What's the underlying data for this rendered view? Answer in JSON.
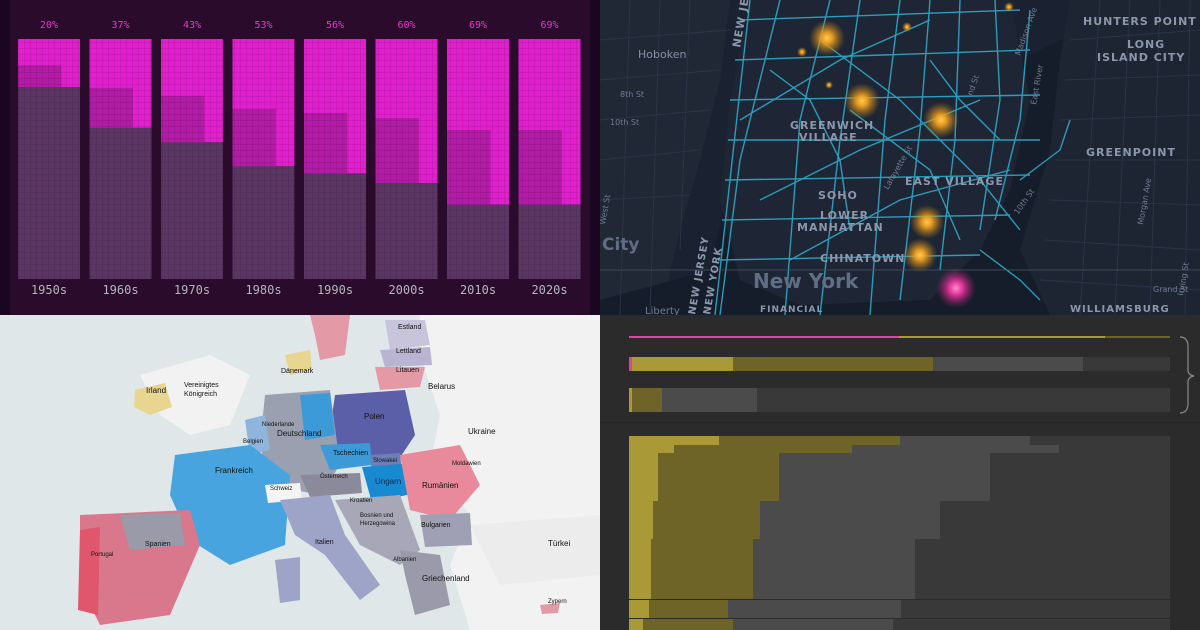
{
  "panels": {
    "decades_chart": {
      "chart_data": {
        "type": "bar",
        "categories": [
          "1950s",
          "1960s",
          "1970s",
          "1980s",
          "1990s",
          "2000s",
          "2010s",
          "2020s"
        ],
        "values": [
          20,
          37,
          43,
          53,
          56,
          60,
          69,
          69
        ],
        "value_labels": [
          "20%",
          "37%",
          "43%",
          "53%",
          "56%",
          "60%",
          "69%",
          "69%"
        ],
        "ylim": [
          0,
          100
        ],
        "colors": {
          "share": "#e21fcf",
          "share_dark": "#b31aa6",
          "remainder": "#5b3664",
          "background": "#2a0b2c"
        }
      }
    },
    "map_nyc": {
      "labels": {
        "hoboken": "Hoboken",
        "new_jersey_top": "NEW JERSEY",
        "hunters_point": "HUNTERS POINT",
        "long_island_city_1": "LONG",
        "long_island_city_2": "ISLAND CITY",
        "greenwich_1": "GREENWICH",
        "greenwich_2": "VILLAGE",
        "greenpoint": "GREENPOINT",
        "east_village": "EAST VILLAGE",
        "soho": "SOHO",
        "lower_1": "LOWER",
        "lower_2": "MANHATTAN",
        "chinatown": "CHINATOWN",
        "city": "City",
        "new_york": "New York",
        "new_jersey_bottom_1": "NEW JERSEY",
        "new_jersey_bottom_2": "NEW YORK",
        "financial": "FINANCIAL",
        "williamsburg": "WILLIAMSBURG",
        "liberty": "Liberty",
        "east_river": "East River",
        "east_river_2": "East River",
        "grand_st": "Grand St",
        "eighth_st": "8th St",
        "tenth_st": "10th St",
        "irving_st": "Irving St",
        "morgan_ave": "Morgan Ave",
        "tenth_st_2": "10th St",
        "nd_st": "nd St",
        "madison": "Madison Ave",
        "lafayette": "Lafayette St",
        "west_st": "West St"
      },
      "colors": {
        "route": "#33b8d6",
        "hotspot": "#f0a020",
        "hotspot_pink": "#e8349c"
      }
    },
    "europe_map": {
      "labels": {
        "irland": "Irland",
        "vk_1": "Vereinigtes",
        "vk_2": "Königreich",
        "daenemark": "Dänemark",
        "estland": "Estland",
        "lettland": "Lettland",
        "litauen": "Litauen",
        "belarus": "Belarus",
        "niederlande": "Niederlande",
        "belgien": "Belgien",
        "deutschland": "Deutschland",
        "polen": "Polen",
        "ukraine": "Ukraine",
        "tschechien": "Tschechien",
        "slowakei": "Slowakei",
        "oesterreich": "Österreich",
        "ungarn": "Ungarn",
        "moldawien": "Moldawien",
        "frankreich": "Frankreich",
        "schweiz": "Schweiz",
        "rumaenien": "Rumänien",
        "kroatien": "Kroatien",
        "bosnien_1": "Bosnien und",
        "bosnien_2": "Herzegowina",
        "bulgarien": "Bulgarien",
        "spanien": "Spanien",
        "italien": "Italien",
        "portugal": "Portugal",
        "albanien": "Albanien",
        "tuerkei": "Türkei",
        "griechenland": "Griechenland",
        "zypern": "Zypern"
      }
    },
    "bars_chart": {
      "colors": {
        "olive": "#aa9a37",
        "olive_dark": "#6e6428",
        "grey": "#4b4b4b",
        "grey_dark": "#393939",
        "pink": "#e63da7"
      }
    }
  }
}
